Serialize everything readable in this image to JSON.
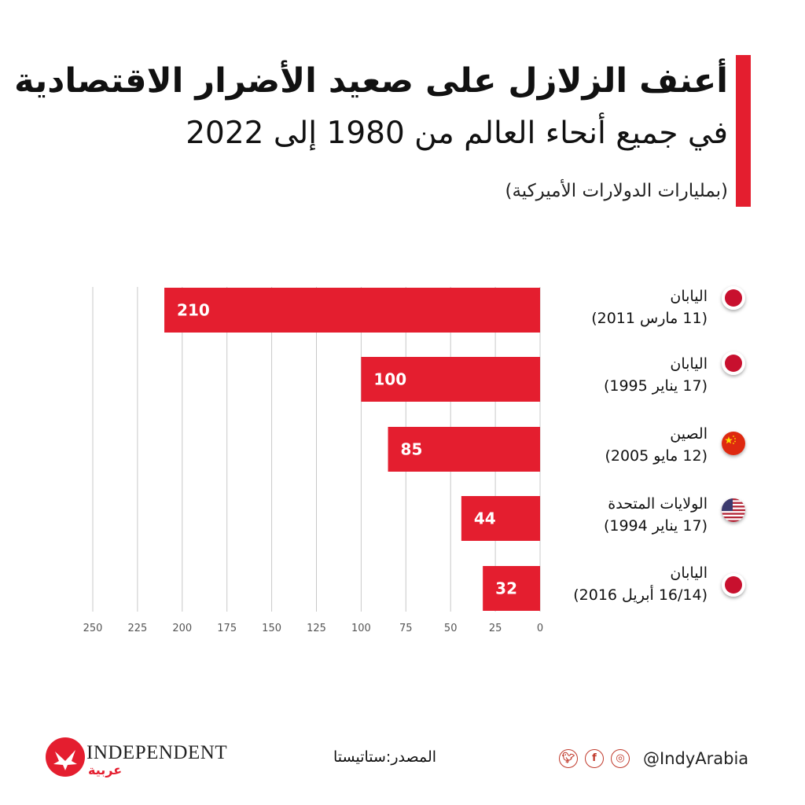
{
  "header": {
    "title": "أعنف الزلازل على صعيد الأضرار الاقتصادية",
    "subtitle": "في جميع أنحاء العالم من 1980 إلى 2022",
    "unit_note": "(بمليارات الدولارات الأميركية)"
  },
  "colors": {
    "accent": "#e41e2f",
    "bar": "#e41e2f",
    "grid": "#c8c8c8",
    "text": "#111111"
  },
  "chart_data": {
    "type": "bar",
    "orientation": "horizontal",
    "direction": "right-to-left",
    "title": "أعنف الزلازل على صعيد الأضرار الاقتصادية في جميع أنحاء العالم من 1980 إلى 2022",
    "xlabel": "",
    "ylabel": "",
    "unit": "بمليارات الدولارات الأميركية",
    "categories": [
      {
        "country": "اليابان",
        "date": "(11 مارس 2011)",
        "flag": "japan-flag-icon"
      },
      {
        "country": "اليابان",
        "date": "(17 يناير 1995)",
        "flag": "japan-flag-icon"
      },
      {
        "country": "الصين",
        "date": "(12 مايو 2005)",
        "flag": "china-flag-icon"
      },
      {
        "country": "الولايات المتحدة",
        "date": "(17 يناير 1994)",
        "flag": "usa-flag-icon"
      },
      {
        "country": "اليابان",
        "date": "(16/14 أبريل 2016)",
        "flag": "japan-flag-icon"
      }
    ],
    "values": [
      210,
      100,
      85,
      44,
      32
    ],
    "value_labels": [
      "210",
      "100",
      "85",
      "44",
      "32"
    ],
    "xlim": [
      0,
      250
    ],
    "xticks": [
      250,
      225,
      200,
      175,
      150,
      125,
      100,
      75,
      50,
      25,
      0
    ],
    "grid": true,
    "legend": "none"
  },
  "footer": {
    "brand": "INDEPENDENT",
    "brand_arabic": "عربية",
    "source": "المصدر:ستاتيستا",
    "handle": "@IndyArabia",
    "social_icons": [
      "twitter-icon",
      "facebook-icon",
      "instagram-icon"
    ]
  }
}
